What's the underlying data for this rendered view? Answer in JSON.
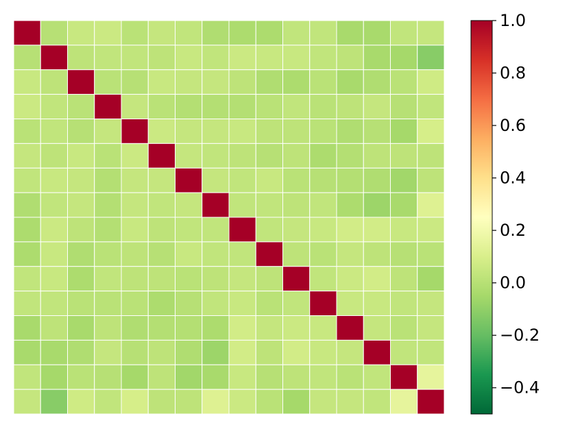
{
  "chart_data": {
    "type": "heatmap",
    "rows": 16,
    "cols": 16,
    "values": [
      [
        1.0,
        0.0,
        0.05,
        0.06,
        0.01,
        0.04,
        0.03,
        -0.02,
        -0.03,
        -0.03,
        0.03,
        0.03,
        -0.04,
        -0.04,
        0.03,
        0.04
      ],
      [
        0.0,
        1.0,
        0.02,
        0.03,
        0.03,
        0.02,
        0.05,
        0.03,
        0.06,
        0.05,
        0.05,
        0.03,
        0.02,
        -0.04,
        -0.05,
        -0.12
      ],
      [
        0.05,
        0.02,
        1.0,
        0.01,
        0.0,
        0.05,
        0.04,
        0.04,
        0.02,
        -0.02,
        -0.03,
        0.01,
        -0.04,
        -0.02,
        0.01,
        0.07
      ],
      [
        0.06,
        0.03,
        0.01,
        1.0,
        0.04,
        0.01,
        -0.01,
        -0.01,
        -0.01,
        0.01,
        0.03,
        0.01,
        0.02,
        0.04,
        0.0,
        0.03
      ],
      [
        0.01,
        0.03,
        0.0,
        0.04,
        1.0,
        0.06,
        0.04,
        0.04,
        0.05,
        0.02,
        0.02,
        0.01,
        -0.02,
        0.0,
        -0.05,
        0.09
      ],
      [
        0.04,
        0.02,
        0.05,
        0.01,
        0.06,
        1.0,
        0.04,
        0.03,
        0.02,
        0.0,
        0.02,
        -0.03,
        -0.01,
        0.02,
        0.02,
        0.02
      ],
      [
        0.03,
        0.05,
        0.04,
        -0.01,
        0.04,
        0.04,
        1.0,
        0.04,
        0.03,
        0.05,
        0.01,
        0.0,
        -0.01,
        -0.02,
        -0.06,
        0.02
      ],
      [
        -0.02,
        0.03,
        0.04,
        -0.01,
        0.04,
        0.03,
        0.04,
        1.0,
        0.03,
        0.03,
        0.02,
        0.03,
        -0.03,
        -0.07,
        -0.04,
        0.12
      ],
      [
        -0.03,
        0.06,
        0.02,
        -0.01,
        0.05,
        0.02,
        0.03,
        0.03,
        1.0,
        0.03,
        0.04,
        0.05,
        0.08,
        0.08,
        0.05,
        0.06
      ],
      [
        -0.03,
        0.05,
        -0.02,
        0.01,
        0.02,
        0.0,
        0.05,
        0.03,
        0.03,
        1.0,
        0.02,
        0.01,
        0.04,
        0.02,
        0.0,
        0.01
      ],
      [
        0.03,
        0.05,
        -0.03,
        0.03,
        0.02,
        0.02,
        0.01,
        0.02,
        0.04,
        0.02,
        1.0,
        0.03,
        0.06,
        0.08,
        0.02,
        -0.05
      ],
      [
        0.03,
        0.03,
        0.01,
        0.01,
        0.01,
        -0.03,
        0.0,
        0.03,
        0.05,
        0.01,
        0.03,
        1.0,
        0.05,
        0.05,
        0.03,
        0.04
      ],
      [
        -0.04,
        0.02,
        -0.04,
        0.02,
        -0.02,
        -0.01,
        -0.01,
        -0.03,
        0.08,
        0.04,
        0.06,
        0.05,
        1.0,
        0.04,
        0.01,
        0.04
      ],
      [
        -0.04,
        -0.04,
        -0.02,
        0.04,
        0.0,
        0.02,
        -0.02,
        -0.07,
        0.08,
        0.02,
        0.08,
        0.05,
        0.04,
        1.0,
        0.03,
        0.03
      ],
      [
        0.03,
        -0.05,
        0.01,
        0.0,
        -0.05,
        0.02,
        -0.06,
        -0.04,
        0.05,
        0.0,
        0.02,
        0.03,
        0.01,
        0.03,
        1.0,
        0.15
      ],
      [
        0.04,
        -0.12,
        0.07,
        0.03,
        0.09,
        0.02,
        0.02,
        0.12,
        0.06,
        0.01,
        -0.05,
        0.04,
        0.04,
        0.03,
        0.15,
        1.0
      ]
    ],
    "colormap": "RdYlGn_r",
    "vmin": -0.5,
    "vmax": 1.0,
    "colorbar_ticks": [
      "1.0",
      "0.8",
      "0.6",
      "0.4",
      "0.2",
      "0.0",
      "−0.2",
      "−0.4"
    ],
    "colorbar_tick_values": [
      1.0,
      0.8,
      0.6,
      0.4,
      0.2,
      0.0,
      -0.2,
      -0.4
    ],
    "title": "",
    "xlabel": "",
    "ylabel": "",
    "grid": false,
    "cell_border_color": "#ffffff"
  }
}
